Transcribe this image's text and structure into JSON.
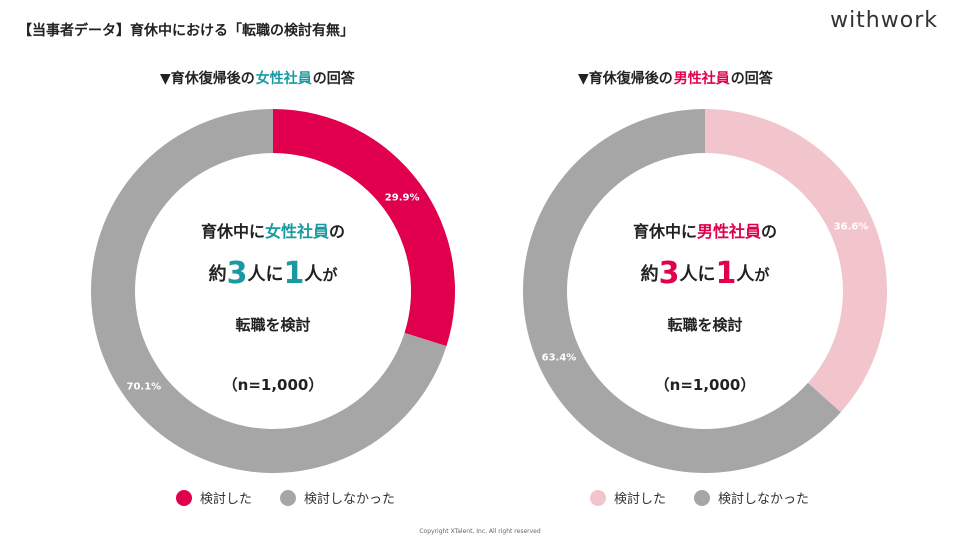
{
  "header": {
    "title": "【当事者データ】育休中における「転職の検討有無」",
    "logo": "withwork"
  },
  "colors": {
    "female_considered": "#e0004d",
    "male_considered": "#f2c4cc",
    "not_considered": "#a6a6a6",
    "teal": "#1a9aa0"
  },
  "charts": [
    {
      "title_prefix": "▼育休復帰後の",
      "title_highlight": "女性社員",
      "title_suffix": "の回答",
      "center": {
        "line1_prefix": "育休中に",
        "line1_highlight": "女性社員",
        "line1_suffix": "の",
        "line2_a": "約",
        "line2_num1": "3",
        "line2_b": "人に",
        "line2_num2": "1",
        "line2_c": "人",
        "line2_d": "が",
        "line3": "転職を検討",
        "line4": "（n=1,000）"
      },
      "legend": [
        "検討した",
        "検討しなかった"
      ]
    },
    {
      "title_prefix": "▼育休復帰後の",
      "title_highlight": "男性社員",
      "title_suffix": "の回答",
      "center": {
        "line1_prefix": "育休中に",
        "line1_highlight": "男性社員",
        "line1_suffix": "の",
        "line2_a": "約",
        "line2_num1": "3",
        "line2_b": "人に",
        "line2_num2": "1",
        "line2_c": "人",
        "line2_d": "が",
        "line3": "転職を検討",
        "line4": "（n=1,000）"
      },
      "legend": [
        "検討した",
        "検討しなかった"
      ]
    }
  ],
  "chart_data": [
    {
      "type": "pie",
      "categories": [
        "検討した",
        "検討しなかった"
      ],
      "values": [
        29.9,
        70.1
      ],
      "labels": [
        "29.9%",
        "70.1%"
      ],
      "colors": [
        "#e0004d",
        "#a6a6a6"
      ],
      "donut": true
    },
    {
      "type": "pie",
      "categories": [
        "検討した",
        "検討しなかった"
      ],
      "values": [
        36.6,
        63.4
      ],
      "labels": [
        "36.6%",
        "63.4%"
      ],
      "colors": [
        "#f2c4cc",
        "#a6a6a6"
      ],
      "donut": true
    }
  ],
  "footer": {
    "copyright": "Copyright XTalent, Inc. All right reserved"
  }
}
